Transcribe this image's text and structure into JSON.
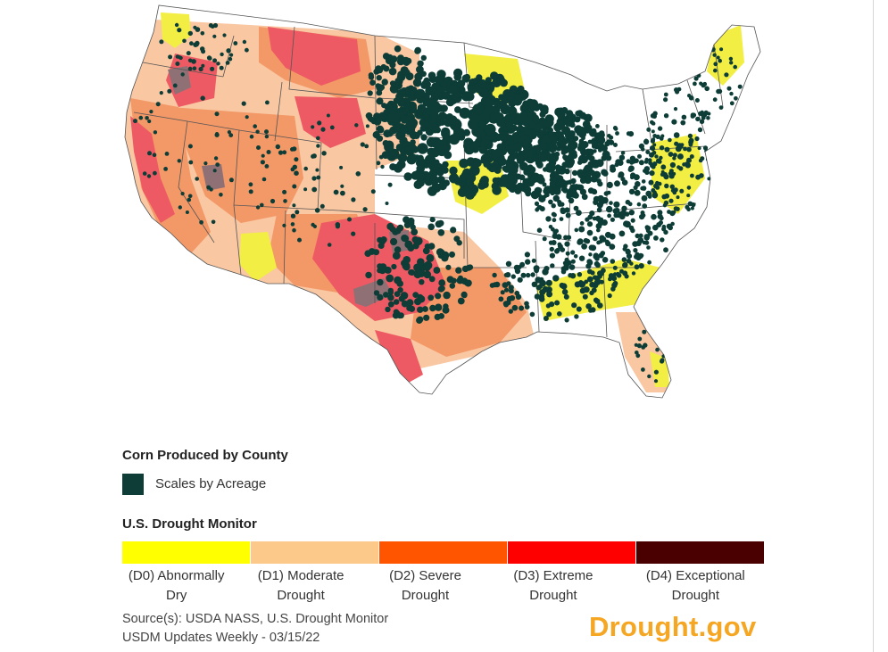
{
  "legend": {
    "corn_title": "Corn Produced by County",
    "corn_item": "Scales by Acreage",
    "corn_color": "#0d3d36",
    "drought_title": "U.S. Drought Monitor",
    "categories": [
      {
        "label": "(D0) Abnormally Dry",
        "color": "#ffff00"
      },
      {
        "label": "(D1) Moderate Drought",
        "color": "#fcc98a"
      },
      {
        "label": "(D2) Severe Drought",
        "color": "#ff5500"
      },
      {
        "label": "(D3) Extreme Drought",
        "color": "#ff0000"
      },
      {
        "label": "(D4) Exceptional Drought",
        "color": "#4a0000"
      }
    ]
  },
  "source": {
    "line1": "Source(s): USDA NASS, U.S. Drought Monitor",
    "line2": "USDM Updates Weekly - 03/15/22"
  },
  "brand": "Drought.gov",
  "map": {
    "land_color": "#ffffff",
    "boundary_color": "#555555",
    "map_colors": {
      "d0": "#f2ee44",
      "d1": "#f9c7a2",
      "d2": "#f39867",
      "d3": "#ee5a64",
      "d4": "#8e7075"
    }
  }
}
